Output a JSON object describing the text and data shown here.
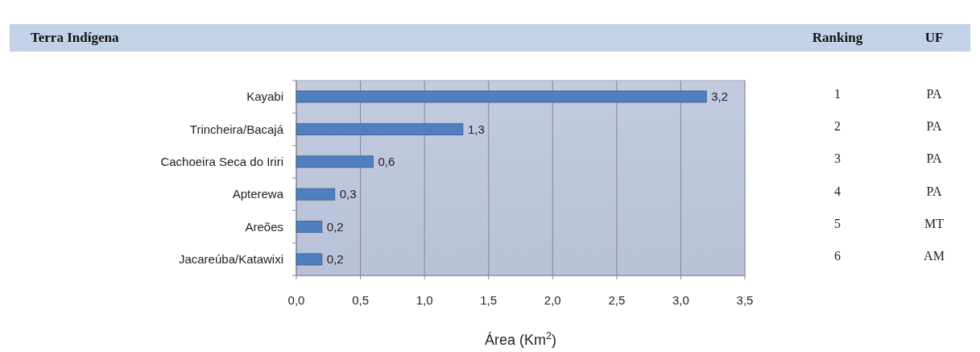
{
  "chart_data": {
    "type": "bar",
    "orientation": "horizontal",
    "xlabel": "Área (Km$^{2}$)",
    "categories": [
      "Kayabi",
      "Trincheira/Bacajá",
      "Cachoeira Seca do Iriri",
      "Apterewa",
      "Areões",
      "Jacareúba/Katawixi"
    ],
    "values": [
      3.2,
      1.3,
      0.6,
      0.3,
      0.2,
      0.2
    ],
    "color": "#4f7fbe",
    "value_labels": [
      "3,2",
      "1,3",
      "0,6",
      "0,3",
      "0,2",
      "0,2"
    ],
    "xlim": [
      0,
      3.5
    ],
    "xticks": [
      {
        "value": 0,
        "label": "0,0"
      },
      {
        "value": 0.5,
        "label": "0,5"
      },
      {
        "value": 1,
        "label": "1,0"
      },
      {
        "value": 1.5,
        "label": "1,5"
      },
      {
        "value": 2,
        "label": "2,0"
      },
      {
        "value": 2.5,
        "label": "2,5"
      },
      {
        "value": 3,
        "label": "3,0"
      },
      {
        "value": 3.5,
        "label": "3,5"
      }
    ],
    "grid": "x",
    "annotations": [
      "Terra Indígena",
      "Ranking",
      "UF",
      "1",
      "PA",
      "2",
      "PA",
      "3",
      "PA",
      "4",
      "PA",
      "5",
      "MT",
      "6",
      "AM"
    ]
  }
}
